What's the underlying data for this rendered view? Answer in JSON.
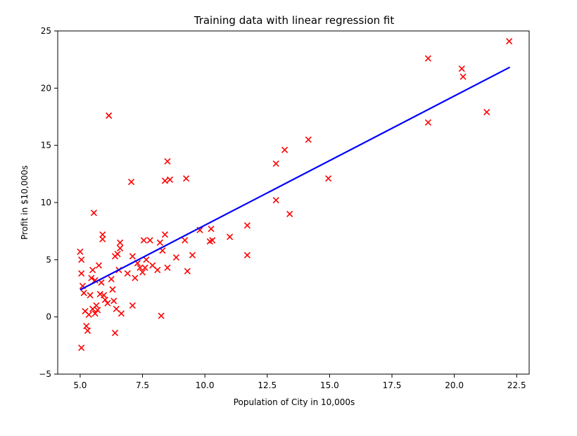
{
  "chart_data": {
    "type": "scatter",
    "title": "Training data with linear regression fit",
    "xlabel": "Population of City in 10,000s",
    "ylabel": "Profit in $10,000s",
    "xlim": [
      4.1,
      23.0
    ],
    "ylim": [
      -5,
      25
    ],
    "xticks": [
      "5.0",
      "7.5",
      "10.0",
      "12.5",
      "15.0",
      "17.5",
      "20.0",
      "22.5"
    ],
    "yticks": [
      "−5",
      "0",
      "5",
      "10",
      "15",
      "20",
      "25"
    ],
    "grid": false,
    "marker_color": "#ff0000",
    "line_color": "#0000ff",
    "series": [
      {
        "type": "scatter",
        "marker": "x",
        "points": [
          [
            5.0,
            5.7
          ],
          [
            5.05,
            5.0
          ],
          [
            5.05,
            3.8
          ],
          [
            5.05,
            -2.7
          ],
          [
            5.1,
            2.7
          ],
          [
            5.15,
            2.1
          ],
          [
            5.2,
            0.5
          ],
          [
            5.25,
            -0.8
          ],
          [
            5.3,
            -1.2
          ],
          [
            5.35,
            0.2
          ],
          [
            5.4,
            1.9
          ],
          [
            5.45,
            3.4
          ],
          [
            5.5,
            4.1
          ],
          [
            5.5,
            0.7
          ],
          [
            5.55,
            9.1
          ],
          [
            5.6,
            0.3
          ],
          [
            5.6,
            3.2
          ],
          [
            5.65,
            1.0
          ],
          [
            5.7,
            0.6
          ],
          [
            5.75,
            4.5
          ],
          [
            5.8,
            2.0
          ],
          [
            5.85,
            3.0
          ],
          [
            5.9,
            7.2
          ],
          [
            5.9,
            6.8
          ],
          [
            5.95,
            1.9
          ],
          [
            6.0,
            1.5
          ],
          [
            6.1,
            1.2
          ],
          [
            6.15,
            17.6
          ],
          [
            6.25,
            3.3
          ],
          [
            6.3,
            2.4
          ],
          [
            6.35,
            1.4
          ],
          [
            6.4,
            5.3
          ],
          [
            6.4,
            -1.4
          ],
          [
            6.45,
            0.7
          ],
          [
            6.5,
            5.5
          ],
          [
            6.55,
            4.1
          ],
          [
            6.6,
            6.5
          ],
          [
            6.6,
            6.0
          ],
          [
            6.65,
            0.3
          ],
          [
            6.9,
            3.8
          ],
          [
            7.05,
            11.8
          ],
          [
            7.1,
            1.0
          ],
          [
            7.1,
            5.3
          ],
          [
            7.2,
            3.4
          ],
          [
            7.3,
            4.7
          ],
          [
            7.4,
            4.3
          ],
          [
            7.5,
            3.9
          ],
          [
            7.55,
            6.7
          ],
          [
            7.6,
            4.3
          ],
          [
            7.65,
            5.0
          ],
          [
            7.8,
            6.7
          ],
          [
            7.9,
            4.5
          ],
          [
            8.1,
            4.1
          ],
          [
            8.2,
            6.5
          ],
          [
            8.25,
            0.1
          ],
          [
            8.3,
            5.8
          ],
          [
            8.4,
            7.2
          ],
          [
            8.4,
            11.9
          ],
          [
            8.5,
            13.6
          ],
          [
            8.5,
            4.3
          ],
          [
            8.6,
            12.0
          ],
          [
            8.85,
            5.2
          ],
          [
            9.2,
            6.7
          ],
          [
            9.25,
            12.1
          ],
          [
            9.3,
            4.0
          ],
          [
            9.5,
            5.4
          ],
          [
            9.8,
            7.6
          ],
          [
            10.2,
            6.6
          ],
          [
            10.25,
            7.7
          ],
          [
            10.3,
            6.7
          ],
          [
            11.0,
            7.0
          ],
          [
            11.7,
            8.0
          ],
          [
            11.7,
            5.4
          ],
          [
            12.85,
            13.4
          ],
          [
            12.85,
            10.2
          ],
          [
            13.2,
            14.6
          ],
          [
            13.4,
            9.0
          ],
          [
            14.15,
            15.5
          ],
          [
            14.95,
            12.1
          ],
          [
            18.95,
            22.6
          ],
          [
            18.95,
            17.0
          ],
          [
            20.3,
            21.7
          ],
          [
            20.35,
            21.0
          ],
          [
            21.3,
            17.9
          ],
          [
            22.2,
            24.1
          ]
        ]
      },
      {
        "type": "line",
        "points": [
          [
            5.03,
            2.4
          ],
          [
            22.2,
            21.8
          ]
        ]
      }
    ]
  }
}
